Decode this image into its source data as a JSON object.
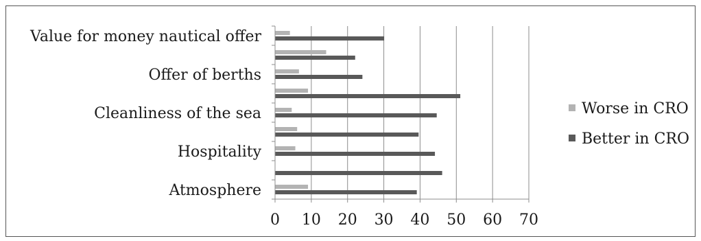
{
  "chart_data": {
    "type": "bar",
    "orientation": "horizontal",
    "categories": [
      "Atmosphere",
      "",
      "Hospitality",
      "",
      "Cleanliness of the sea",
      "",
      "Offer of berths",
      "",
      "Value for money nautical offer"
    ],
    "series": [
      {
        "name": "Worse in CRO",
        "color": "#b3b3b3",
        "values": [
          9,
          0,
          5.5,
          6,
          4.5,
          9,
          6.5,
          14,
          4
        ]
      },
      {
        "name": "Better in CRO",
        "color": "#595959",
        "values": [
          39,
          46,
          44,
          39.5,
          44.5,
          51,
          24,
          22,
          30
        ]
      }
    ],
    "xlim": [
      0,
      70
    ],
    "xticks": [
      "0",
      "10",
      "20",
      "30",
      "40",
      "50",
      "60",
      "70"
    ],
    "legend_position": "right",
    "grid": true
  }
}
